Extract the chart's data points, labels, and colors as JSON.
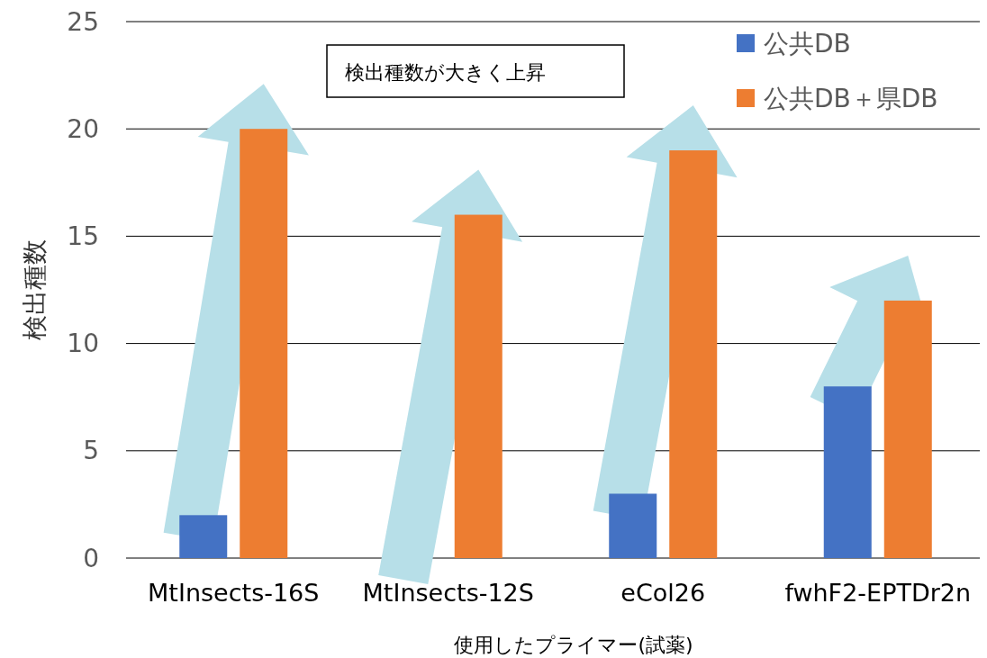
{
  "chart_data": {
    "type": "bar",
    "categories": [
      "MtInsects-16S",
      "MtInsects-12S",
      "eCol26",
      "fwhF2-EPTDr2n"
    ],
    "series": [
      {
        "name": "公共DB",
        "color": "#4472c4",
        "values": [
          2,
          0,
          3,
          8
        ]
      },
      {
        "name": "公共DB＋県DB",
        "color": "#ed7d31",
        "values": [
          20,
          16,
          19,
          12
        ]
      }
    ],
    "xlabel": "使用したプライマー(試薬)",
    "ylabel": "検出種数",
    "ylim": [
      0,
      25
    ],
    "yticks": [
      0,
      5,
      10,
      15,
      20,
      25
    ],
    "grid": "y",
    "legend": "top right",
    "annotations": [
      "検出種数が大きく上昇"
    ]
  }
}
